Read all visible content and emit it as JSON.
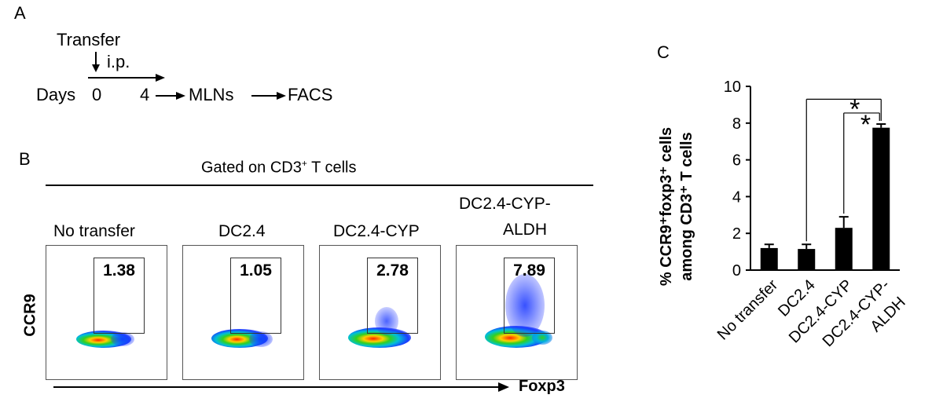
{
  "panel_a": {
    "letter": "A",
    "transfer": "Transfer",
    "route": "i.p.",
    "days": "Days",
    "day0": "0",
    "day4": "4",
    "mlns": "MLNs",
    "facs": "FACS"
  },
  "panel_b": {
    "letter": "B",
    "gated_label": "Gated on CD3",
    "gated_sup": "+",
    "gated_suffix": " T cells",
    "y_axis": "CCR9",
    "x_axis": "Foxp3",
    "plots": [
      {
        "title": "No transfer",
        "gate_value": "1.38"
      },
      {
        "title": "DC2.4",
        "gate_value": "1.05"
      },
      {
        "title": "DC2.4-CYP",
        "gate_value": "2.78"
      },
      {
        "title_line1": "DC2.4-CYP-",
        "title_line2": "ALDH",
        "gate_value": "7.89"
      }
    ]
  },
  "panel_c": {
    "letter": "C",
    "significance_mark": "*"
  },
  "chart_data": {
    "type": "bar",
    "categories": [
      "No transfer",
      "DC2.4",
      "DC2.4-CYP",
      "DC2.4-CYP-\nALDH"
    ],
    "values": [
      1.2,
      1.15,
      2.3,
      7.75
    ],
    "errors": [
      0.2,
      0.25,
      0.6,
      0.2
    ],
    "ylabel_line1": "% CCR9⁺foxp3⁺ cells",
    "ylabel_line2": "among CD3⁺ T cells",
    "ylim": [
      0,
      10
    ],
    "yticks": [
      "0",
      "2",
      "4",
      "6",
      "8",
      "10"
    ],
    "grid": false,
    "bar_color": "#000000"
  }
}
